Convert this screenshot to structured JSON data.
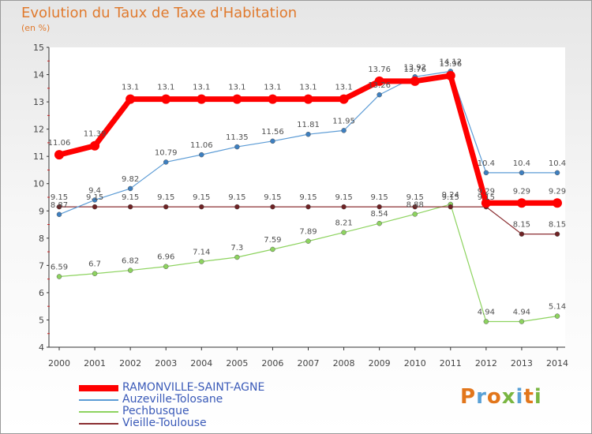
{
  "header": {
    "title": "Evolution du Taux de Taxe d'Habitation",
    "unit": "(en %)"
  },
  "logo": {
    "letters": [
      "P",
      "r",
      "o",
      "x",
      "i",
      "t",
      "i"
    ],
    "colors": [
      "#e2761b",
      "#58a0d6",
      "#e2761b",
      "#7ab642",
      "#58a0d6",
      "#e2761b",
      "#7ab642"
    ]
  },
  "chart_data": {
    "type": "line",
    "title": "Evolution du Taux de Taxe d'Habitation",
    "ylabel": "(en %)",
    "xlabel": "",
    "ylim": [
      4,
      15
    ],
    "yticks": [
      4,
      5,
      6,
      7,
      8,
      9,
      10,
      11,
      12,
      13,
      14,
      15
    ],
    "grid": false,
    "legend_position": "bottom-left",
    "x": [
      "2000",
      "2001",
      "2002",
      "2003",
      "2004",
      "2005",
      "2006",
      "2007",
      "2008",
      "2009",
      "2010",
      "2011",
      "2012",
      "2013",
      "2014"
    ],
    "series": [
      {
        "name": "Pechbusque",
        "color": "#8dd35f",
        "marker": "#8dd35f",
        "width": 1.2,
        "values": [
          6.59,
          6.7,
          6.82,
          6.96,
          7.14,
          7.3,
          7.59,
          7.89,
          8.21,
          8.54,
          8.88,
          9.24,
          4.94,
          4.94,
          5.14
        ],
        "labels": [
          "6.59",
          "6.7",
          "6.82",
          "6.96",
          "7.14",
          "7.3",
          "7.59",
          "7.89",
          "8.21",
          "8.54",
          "8.88",
          "9.24",
          "4.94",
          "4.94",
          "5.14"
        ]
      },
      {
        "name": "Vieille-Toulouse",
        "color": "#8b2f32",
        "marker": "#6e2224",
        "width": 1.2,
        "values": [
          9.15,
          9.15,
          9.15,
          9.15,
          9.15,
          9.15,
          9.15,
          9.15,
          9.15,
          9.15,
          9.15,
          9.15,
          9.15,
          8.15,
          8.15
        ],
        "labels": [
          "9.15",
          "9.15",
          "9.15",
          "9.15",
          "9.15",
          "9.15",
          "9.15",
          "9.15",
          "9.15",
          "9.15",
          "9.15",
          "9.15",
          "9.15",
          "8.15",
          "8.15"
        ]
      },
      {
        "name": "Auzeville-Tolosane",
        "color": "#5b9bd5",
        "marker": "#3d7fc0",
        "width": 1.2,
        "values": [
          8.87,
          9.4,
          9.82,
          10.79,
          11.06,
          11.35,
          11.56,
          11.81,
          11.95,
          13.26,
          13.92,
          14.12,
          10.4,
          10.4,
          10.4
        ],
        "labels": [
          "8.87",
          "9.4",
          "9.82",
          "10.79",
          "11.06",
          "11.35",
          "11.56",
          "11.81",
          "11.95",
          "13.26",
          "13.92",
          "14.12",
          "10.4",
          "10.4",
          "10.4"
        ]
      },
      {
        "name": "RAMONVILLE-SAINT-AGNE",
        "color": "#ff0000",
        "marker": "#ff0000",
        "width": 7,
        "values": [
          11.06,
          11.39,
          13.1,
          13.1,
          13.1,
          13.1,
          13.1,
          13.1,
          13.1,
          13.76,
          13.76,
          13.96,
          9.29,
          9.29,
          9.29
        ],
        "labels": [
          "11.06",
          "11.39",
          "13.1",
          "13.1",
          "13.1",
          "13.1",
          "13.1",
          "13.1",
          "13.1",
          "13.76",
          "13.76",
          "13.96",
          "9.29",
          "9.29",
          "9.29"
        ]
      }
    ],
    "legend_order": [
      "RAMONVILLE-SAINT-AGNE",
      "Auzeville-Tolosane",
      "Pechbusque",
      "Vieille-Toulouse"
    ]
  }
}
